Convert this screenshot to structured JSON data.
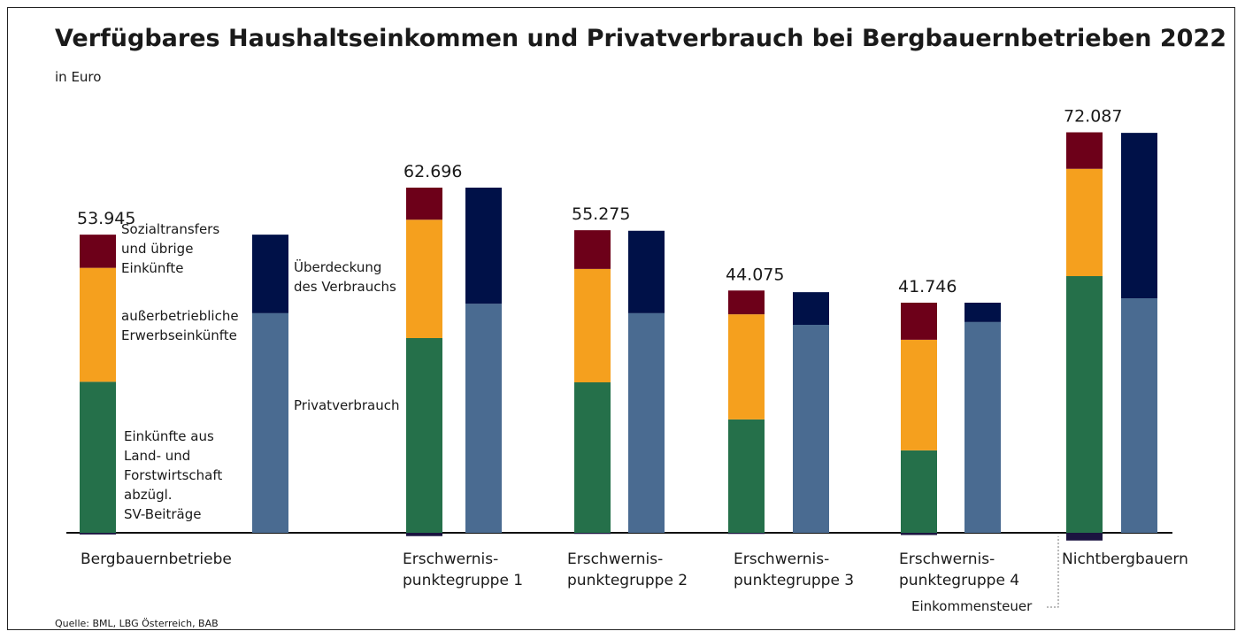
{
  "chart_data": {
    "type": "bar",
    "title": "Verfügbares Haushaltseinkommen und Privatverbrauch bei Bergbauernbetrieben 2022",
    "subtitle": "in Euro",
    "source": "Quelle: BML, LBG Österreich, BAB",
    "categories": [
      "Bergbauernbetriebe",
      "Erschwernis-\npunktegruppe 1",
      "Erschwernis-\npunktegruppe 2",
      "Erschwernis-\npunktegruppe 3",
      "Erschwernis-\npunktegruppe 4",
      "Nichtbergbauern"
    ],
    "stacks": [
      "income",
      "consumption"
    ],
    "series": [
      {
        "name": "Einkünfte aus\nLand- und\nForstwirtschaft\nabzügl.\nSV-Beiträge",
        "color": "#25704a",
        "stack": "income",
        "values": [
          27300,
          35200,
          27200,
          20500,
          14900,
          46400
        ]
      },
      {
        "name": "außerbetriebliche\nErwerbseinkünfte",
        "color": "#f5a01e",
        "stack": "income",
        "values": [
          20600,
          21400,
          20500,
          19000,
          20000,
          19400
        ]
      },
      {
        "name": "Sozialtransfers\nund übrige\nEinkünfte",
        "color": "#6d0019",
        "stack": "income",
        "values": [
          6000,
          5800,
          7000,
          4300,
          6700,
          6600
        ]
      },
      {
        "name": "Einkommensteuer",
        "color": "#1b1440",
        "stack": "income",
        "values": [
          -300,
          -600,
          -200,
          -200,
          -400,
          -1400
        ]
      },
      {
        "name": "Privatverbrauch",
        "color": "#4a6b91",
        "stack": "consumption",
        "values": [
          39700,
          41400,
          39700,
          37600,
          38100,
          42400
        ]
      },
      {
        "name": "Überdeckung\ndes Verbrauchs",
        "color": "#001148",
        "stack": "consumption",
        "values": [
          14200,
          21000,
          14900,
          5900,
          3500,
          29900
        ]
      }
    ],
    "totals": {
      "values": [
        53945,
        62696,
        55275,
        44075,
        41746,
        72087
      ],
      "value_labels": [
        "53.945",
        "62.696",
        "55.275",
        "44.075",
        "41.746",
        "72.087"
      ]
    },
    "ylim": [
      -3000,
      75000
    ]
  }
}
